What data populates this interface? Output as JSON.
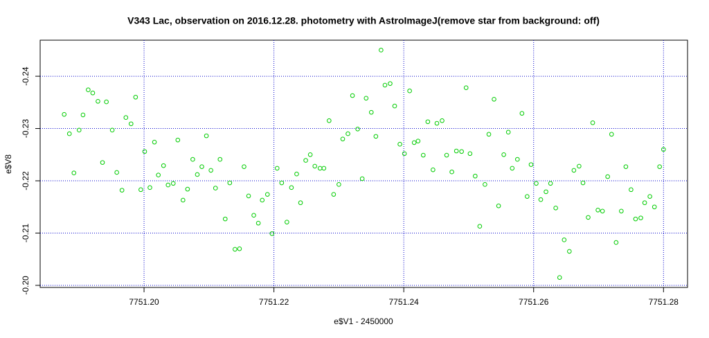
{
  "chart_data": {
    "type": "scatter",
    "title": "V343 Lac, observation on 2016.12.28. photometry with AstroImageJ(remove star from background: off)",
    "x_label": "e$V1 - 2450000",
    "y_label": "e$V8",
    "xlim": [
      7751.184,
      7751.2837
    ],
    "ylim": [
      -0.1996,
      -0.2469
    ],
    "xticks": [
      {
        "value": 7751.2,
        "label": "7751.20"
      },
      {
        "value": 7751.22,
        "label": "7751.22"
      },
      {
        "value": 7751.24,
        "label": "7751.24"
      },
      {
        "value": 7751.26,
        "label": "7751.26"
      },
      {
        "value": 7751.28,
        "label": "7751.28"
      }
    ],
    "yticks": [
      {
        "value": -0.2,
        "label": "-0.20"
      },
      -0.21,
      -0.22,
      -0.23,
      -0.24
    ],
    "grid": true,
    "grid_color": "#0000cc",
    "color": "#00cc00",
    "x": [
      7751.1877,
      7751.1885,
      7751.1892,
      7751.19,
      7751.1906,
      7751.1914,
      7751.1921,
      7751.1929,
      7751.1936,
      7751.1942,
      7751.1951,
      7751.1958,
      7751.1966,
      7751.1972,
      7751.198,
      7751.1987,
      7751.1995,
      7751.2001,
      7751.2009,
      7751.2016,
      7751.2022,
      7751.203,
      7751.2037,
      7751.2045,
      7751.2052,
      7751.206,
      7751.2067,
      7751.2075,
      7751.2082,
      7751.2089,
      7751.2096,
      7751.2103,
      7751.211,
      7751.2117,
      7751.2125,
      7751.2132,
      7751.214,
      7751.2147,
      7751.2154,
      7751.2161,
      7751.2169,
      7751.2176,
      7751.2182,
      7751.219,
      7751.2197,
      7751.2205,
      7751.2212,
      7751.222,
      7751.2227,
      7751.2235,
      7751.2241,
      7751.2249,
      7751.2256,
      7751.2263,
      7751.2271,
      7751.2277,
      7751.2285,
      7751.2292,
      7751.23,
      7751.2306,
      7751.2314,
      7751.2321,
      7751.2329,
      7751.2336,
      7751.2342,
      7751.235,
      7751.2357,
      7751.2365,
      7751.2371,
      7751.2379,
      7751.2386,
      7751.2394,
      7751.2401,
      7751.2409,
      7751.2416,
      7751.2422,
      7751.243,
      7751.2437,
      7751.2445,
      7751.2451,
      7751.2459,
      7751.2466,
      7751.2474,
      7751.2481,
      7751.2489,
      7751.2496,
      7751.2502,
      7751.251,
      7751.2517,
      7751.2525,
      7751.2531,
      7751.2539,
      7751.2546,
      7751.2554,
      7751.2561,
      7751.2567,
      7751.2575,
      7751.2582,
      7751.259,
      7751.2596,
      7751.2604,
      7751.2611,
      7751.2619,
      7751.2626,
      7751.2634,
      7751.264,
      7751.2647,
      7751.2655,
      7751.2662,
      7751.267,
      7751.2676,
      7751.2684,
      7751.2691,
      7751.2699,
      7751.2706,
      7751.2714,
      7751.272,
      7751.2727,
      7751.2735,
      7751.2742,
      7751.275,
      7751.2757,
      7751.2765,
      7751.2771,
      7751.2779,
      7751.2786,
      7751.2794,
      7751.28
    ],
    "values": [
      -0.2327,
      -0.229,
      -0.2215,
      -0.2297,
      -0.2326,
      -0.2374,
      -0.2368,
      -0.2352,
      -0.2235,
      -0.2351,
      -0.2297,
      -0.2216,
      -0.2182,
      -0.2321,
      -0.2309,
      -0.236,
      -0.2183,
      -0.2256,
      -0.2187,
      -0.2274,
      -0.2211,
      -0.2229,
      -0.2192,
      -0.2195,
      -0.2278,
      -0.2163,
      -0.2184,
      -0.2241,
      -0.2212,
      -0.2227,
      -0.2286,
      -0.222,
      -0.2186,
      -0.2241,
      -0.2127,
      -0.2196,
      -0.2069,
      -0.207,
      -0.2227,
      -0.2171,
      -0.2134,
      -0.2119,
      -0.2163,
      -0.2174,
      -0.2099,
      -0.2224,
      -0.2196,
      -0.2121,
      -0.2187,
      -0.2213,
      -0.2158,
      -0.2239,
      -0.225,
      -0.2228,
      -0.2224,
      -0.2224,
      -0.2315,
      -0.2174,
      -0.2193,
      -0.228,
      -0.229,
      -0.2363,
      -0.2299,
      -0.2204,
      -0.2358,
      -0.2331,
      -0.2285,
      -0.245,
      -0.2383,
      -0.2386,
      -0.2343,
      -0.227,
      -0.2252,
      -0.2372,
      -0.2273,
      -0.2276,
      -0.2249,
      -0.2313,
      -0.2221,
      -0.231,
      -0.2315,
      -0.2249,
      -0.2217,
      -0.2257,
      -0.2256,
      -0.2378,
      -0.2252,
      -0.2209,
      -0.2113,
      -0.2193,
      -0.2289,
      -0.2356,
      -0.2152,
      -0.225,
      -0.2293,
      -0.2224,
      -0.2241,
      -0.2329,
      -0.217,
      -0.2231,
      -0.2195,
      -0.2164,
      -0.2179,
      -0.2195,
      -0.2148,
      -0.2015,
      -0.2087,
      -0.2065,
      -0.222,
      -0.2228,
      -0.2196,
      -0.213,
      -0.2311,
      -0.2144,
      -0.2142,
      -0.2208,
      -0.2289,
      -0.2082,
      -0.2142,
      -0.2227,
      -0.2183,
      -0.2127,
      -0.2129,
      -0.2158,
      -0.217,
      -0.215,
      -0.2227,
      -0.226
    ]
  }
}
